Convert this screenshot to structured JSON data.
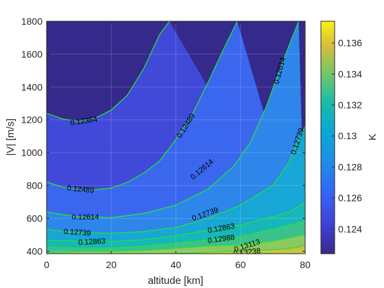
{
  "chart_data": {
    "type": "contour",
    "xlabel": "altitude [km]",
    "ylabel": "|V| [m/s]",
    "colorbar_label": "K",
    "xlim": [
      0,
      80
    ],
    "ylim": [
      385,
      1800
    ],
    "x_ticks": [
      "0",
      "20",
      "40",
      "60",
      "80"
    ],
    "y_ticks": [
      "400",
      "600",
      "800",
      "1000",
      "1200",
      "1400",
      "1600",
      "1800"
    ],
    "colorbar_ticks": [
      "0.124",
      "0.126",
      "0.128",
      "0.13",
      "0.132",
      "0.134",
      "0.136"
    ],
    "colorbar_range": [
      0.1224,
      0.1374
    ],
    "contour_line_color": "#22e33a",
    "levels": [
      0.12364,
      0.12489,
      0.12614,
      0.12739,
      0.12863,
      0.12988,
      0.13113,
      0.13238
    ],
    "level_labels": [
      "0.12364",
      "0.12489",
      "0.12614",
      "0.12739",
      "0.12863",
      "0.12988",
      "0.13113",
      "0.13238"
    ],
    "contours": [
      {
        "level": 0.12364,
        "points": [
          [
            0,
            1240
          ],
          [
            5,
            1205
          ],
          [
            10,
            1190
          ],
          [
            15,
            1210
          ],
          [
            20,
            1260
          ],
          [
            25,
            1350
          ],
          [
            30,
            1510
          ],
          [
            35,
            1720
          ],
          [
            38,
            1800
          ]
        ]
      },
      {
        "level": 0.12489,
        "points": [
          [
            0,
            822
          ],
          [
            5,
            790
          ],
          [
            10,
            775
          ],
          [
            15,
            773
          ],
          [
            20,
            785
          ],
          [
            25,
            820
          ],
          [
            30,
            875
          ],
          [
            35,
            950
          ],
          [
            40,
            1080
          ],
          [
            45,
            1230
          ],
          [
            50,
            1430
          ],
          [
            55,
            1640
          ],
          [
            59,
            1800
          ]
        ]
      },
      {
        "level": 0.12614,
        "points": [
          [
            0,
            640
          ],
          [
            5,
            622
          ],
          [
            10,
            610
          ],
          [
            20,
            605
          ],
          [
            30,
            630
          ],
          [
            40,
            680
          ],
          [
            50,
            780
          ],
          [
            58,
            920
          ],
          [
            63,
            1060
          ],
          [
            68,
            1280
          ],
          [
            72,
            1500
          ],
          [
            76,
            1700
          ],
          [
            78,
            1800
          ]
        ]
      },
      {
        "level": 0.12739,
        "points": [
          [
            0,
            535
          ],
          [
            5,
            520
          ],
          [
            10,
            513
          ],
          [
            20,
            510
          ],
          [
            30,
            520
          ],
          [
            40,
            545
          ],
          [
            50,
            600
          ],
          [
            60,
            680
          ],
          [
            70,
            800
          ],
          [
            75,
            940
          ],
          [
            78,
            1080
          ],
          [
            80,
            1160
          ]
        ]
      },
      {
        "level": 0.12863,
        "points": [
          [
            0,
            468
          ],
          [
            10,
            462
          ],
          [
            20,
            460
          ],
          [
            30,
            470
          ],
          [
            40,
            495
          ],
          [
            50,
            528
          ],
          [
            60,
            560
          ],
          [
            70,
            610
          ],
          [
            75,
            640
          ],
          [
            80,
            695
          ]
        ]
      },
      {
        "level": 0.12988,
        "points": [
          [
            0,
            425
          ],
          [
            10,
            420
          ],
          [
            20,
            420
          ],
          [
            30,
            430
          ],
          [
            40,
            450
          ],
          [
            50,
            470
          ],
          [
            60,
            490
          ],
          [
            70,
            535
          ],
          [
            76,
            562
          ],
          [
            80,
            585
          ]
        ]
      },
      {
        "level": 0.13113,
        "points": [
          [
            2,
            392
          ],
          [
            10,
            398
          ],
          [
            20,
            400
          ],
          [
            30,
            405
          ],
          [
            40,
            418
          ],
          [
            50,
            432
          ],
          [
            60,
            440
          ],
          [
            70,
            462
          ],
          [
            76,
            485
          ],
          [
            80,
            500
          ]
        ]
      },
      {
        "level": 0.13238,
        "points": [
          [
            38,
            385
          ],
          [
            48,
            393
          ],
          [
            56,
            400
          ],
          [
            64,
            402
          ],
          [
            72,
            412
          ],
          [
            78,
            425
          ],
          [
            80,
            440
          ]
        ]
      }
    ],
    "contour_labels": [
      {
        "text": "0.12364",
        "x": 11.5,
        "y": 1195,
        "angle": -8
      },
      {
        "text": "0.12489",
        "x": 10.5,
        "y": 780,
        "angle": 6
      },
      {
        "text": "0.12614",
        "x": 12,
        "y": 610,
        "angle": 0
      },
      {
        "text": "0.12739",
        "x": 9.5,
        "y": 517,
        "angle": 4
      },
      {
        "text": "0.12863",
        "x": 14,
        "y": 460,
        "angle": -3
      },
      {
        "text": "0.12489",
        "x": 43,
        "y": 1165,
        "angle": -58
      },
      {
        "text": "0.12614",
        "x": 48,
        "y": 900,
        "angle": -40
      },
      {
        "text": "0.12739",
        "x": 49,
        "y": 628,
        "angle": -20
      },
      {
        "text": "0.12863",
        "x": 54,
        "y": 542,
        "angle": -10
      },
      {
        "text": "0.12988",
        "x": 54,
        "y": 477,
        "angle": -8
      },
      {
        "text": "0.13113",
        "x": 62,
        "y": 437,
        "angle": -18
      },
      {
        "text": "0.13238",
        "x": 62,
        "y": 397,
        "angle": -6
      },
      {
        "text": "0.12614",
        "x": 72,
        "y": 1500,
        "angle": -75
      },
      {
        "text": "0.12739",
        "x": 77.5,
        "y": 1070,
        "angle": -72
      }
    ]
  }
}
